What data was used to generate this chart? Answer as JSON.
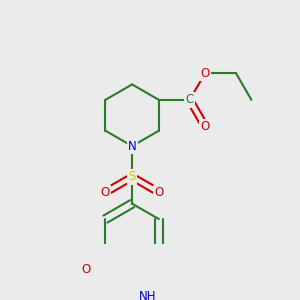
{
  "bg_color": "#ebebeb",
  "atom_colors": {
    "C": "#2d7a2d",
    "N": "#0000cc",
    "O": "#cc0000",
    "S": "#cccc00",
    "H": "#2d7a2d"
  },
  "bond_color": "#2d7a2d",
  "figsize": [
    3.0,
    3.0
  ],
  "dpi": 100
}
